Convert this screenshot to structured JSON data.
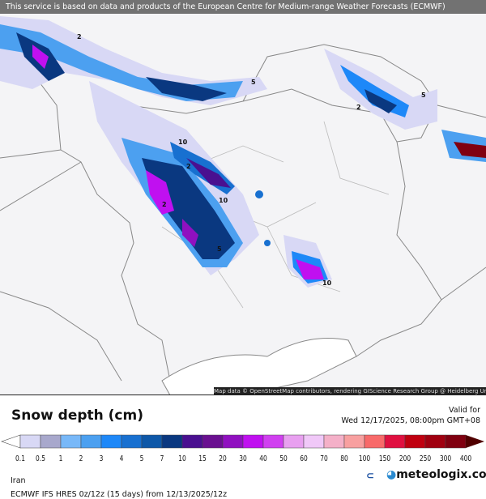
{
  "banner": "This service is based on data and products of the European Centre for Medium-range Weather Forecasts (ECMWF)",
  "attribution": "Map data © OpenStreetMap contributors, rendering GIScience Research Group @ Heidelberg University",
  "title": "Snow depth (cm)",
  "valid_label": "Valid for",
  "valid_time": "Wed 12/17/2025, 08:00pm GMT+08",
  "region": "Iran",
  "model": "ECMWF IFS HRES 0z/12z (15 days) from  12/13/2025/12z",
  "logos": {
    "ecmwf": "ECMWF",
    "meteologix": "meteologix.com"
  },
  "legend": {
    "ticks": [
      "0.1",
      "0.5",
      "1",
      "2",
      "3",
      "4",
      "5",
      "7",
      "10",
      "15",
      "20",
      "30",
      "40",
      "50",
      "60",
      "70",
      "80",
      "100",
      "150",
      "200",
      "250",
      "300",
      "400"
    ],
    "colors": [
      "#d8d8f5",
      "#a8a8cc",
      "#78b8f8",
      "#4ca0f0",
      "#1e88f8",
      "#1870d0",
      "#0e58a8",
      "#0a3880",
      "#4a1090",
      "#6a1090",
      "#9010c0",
      "#c010f0",
      "#d040f0",
      "#e8a0f0",
      "#f0c8f8",
      "#f4b0c8",
      "#f8a0a0",
      "#f86a6a",
      "#e01040",
      "#c00010",
      "#a00010",
      "#800010"
    ],
    "over_color": "#500000",
    "under_color": "#ffffff"
  },
  "contour_labels": [
    "2",
    "5",
    "10",
    "2",
    "2",
    "10",
    "5",
    "2",
    "5",
    "10"
  ]
}
